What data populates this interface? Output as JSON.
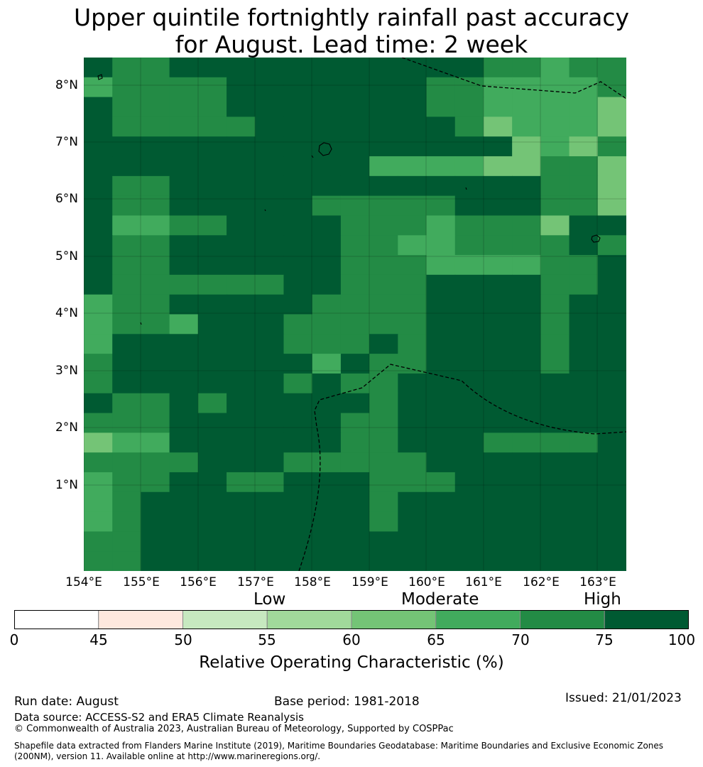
{
  "title_line1": "Upper quintile fortnightly rainfall past accuracy",
  "title_line2": "for August. Lead time: 2 week",
  "lat_labels": [
    "8°N",
    "7°N",
    "6°N",
    "5°N",
    "4°N",
    "3°N",
    "2°N",
    "1°N"
  ],
  "lon_labels": [
    "154°E",
    "155°E",
    "156°E",
    "157°E",
    "158°E",
    "159°E",
    "160°E",
    "161°E",
    "162°E",
    "163°E"
  ],
  "colorbar": {
    "title": "Relative Operating Characteristic (%)",
    "class_labels": {
      "low": "Low",
      "moderate": "Moderate",
      "high": "High"
    },
    "ticks": [
      "0",
      "45",
      "50",
      "55",
      "60",
      "65",
      "70",
      "75",
      "100"
    ],
    "bins": [
      {
        "range": [
          0,
          45
        ],
        "color": "#ffffff"
      },
      {
        "range": [
          45,
          50
        ],
        "color": "#fee8de"
      },
      {
        "range": [
          50,
          55
        ],
        "color": "#c7e9c0"
      },
      {
        "range": [
          55,
          60
        ],
        "color": "#a1d99b"
      },
      {
        "range": [
          60,
          65
        ],
        "color": "#74c476"
      },
      {
        "range": [
          65,
          70
        ],
        "color": "#41ab5d"
      },
      {
        "range": [
          70,
          75
        ],
        "color": "#238b45"
      },
      {
        "range": [
          75,
          100
        ],
        "color": "#005a32"
      }
    ]
  },
  "map": {
    "grid_code_legend": {
      "3": "60-65",
      "4": "65-70",
      "5": "70-75",
      "6": "75-100"
    },
    "rows": [
      "6556666666666655455",
      "4555566666665544445",
      "6555566666665544443",
      "6555556666666534443",
      "6666666666666663435",
      "6666666666444433553",
      "6556666666666666553",
      "6556666655555666553",
      "6445566665554555366",
      "6556666665544555565",
      "6556666665554444556",
      "6555555665556666556",
      "4556666655556666566",
      "4554666555556666566",
      "4666666555656666566",
      "5666666646556666566",
      "5666666565566666666",
      "6556566666566666666",
      "5556666665566666666",
      "3446666665566655556",
      "5555666555556666666",
      "4556655666555666666",
      "4566666666566666666",
      "4566666666566666666",
      "5566666666666666666",
      "5566666666666666666"
    ]
  },
  "footer": {
    "run_date": "Run date: August",
    "base_period": "Base period: 1981-2018",
    "issued": "Issued: 21/01/2023",
    "data_source": "Data source: ACCESS-S2 and ERA5 Climate Reanalysis",
    "copyright": "© Commonwealth of Australia 2023, Australian Bureau of Meteorology, Supported by COSPPac",
    "shapefile_line1": "Shapefile data extracted from Flanders Marine Institute (2019), Maritime Boundaries Geodatabase: Maritime Boundaries and Exclusive Economic Zones",
    "shapefile_line2": "(200NM), version 11. Available online at http://www.marineregions.org/."
  }
}
